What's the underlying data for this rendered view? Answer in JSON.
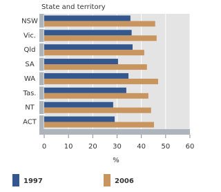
{
  "chart_data": {
    "type": "hbar",
    "title": "State and territory",
    "x_label": "%",
    "categories": [
      "NSW",
      "Vic.",
      "Qld",
      "SA",
      "WA",
      "Tas.",
      "NT",
      "ACT"
    ],
    "series": [
      {
        "name": "1997",
        "color": "#34578e",
        "values": [
          35.5,
          36,
          36.4,
          30.4,
          34.7,
          33.8,
          28.4,
          29
        ]
      },
      {
        "name": "2006",
        "color": "#c9955e",
        "values": [
          45.7,
          46.3,
          41.2,
          42.3,
          46.9,
          42.9,
          44,
          45.2
        ]
      }
    ],
    "xlim": [
      0,
      60
    ],
    "xticks": [
      0,
      10,
      20,
      30,
      40,
      50,
      60
    ],
    "grid": true
  }
}
